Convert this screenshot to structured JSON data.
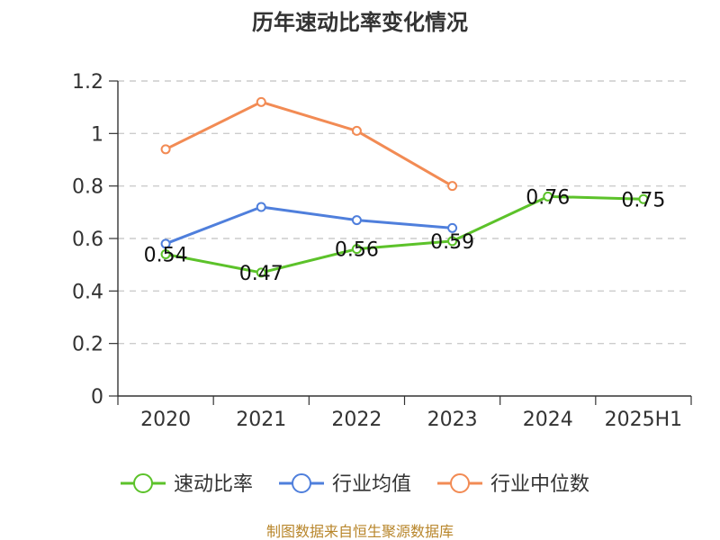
{
  "chart_data": {
    "type": "line",
    "title": "历年速动比率变化情况",
    "categories": [
      "2020",
      "2021",
      "2022",
      "2023",
      "2024",
      "2025H1"
    ],
    "y_ticks": [
      "0",
      "0.2",
      "0.4",
      "0.6",
      "0.8",
      "1",
      "1.2"
    ],
    "ylim": [
      0,
      1.2
    ],
    "grid": true,
    "legend_position": "bottom",
    "series": [
      {
        "name": "速动比率",
        "color": "#5cc22a",
        "values": [
          0.54,
          0.47,
          0.56,
          0.59,
          0.76,
          0.75
        ],
        "labels": [
          "0.54",
          "0.47",
          "0.56",
          "0.59",
          "0.76",
          "0.75"
        ]
      },
      {
        "name": "行业均值",
        "color": "#4f7fdc",
        "values": [
          0.58,
          0.72,
          0.67,
          0.64,
          null,
          null
        ]
      },
      {
        "name": "行业中位数",
        "color": "#f28b54",
        "values": [
          0.94,
          1.12,
          1.01,
          0.8,
          null,
          null
        ]
      }
    ]
  },
  "footer": {
    "text": "制图数据来自恒生聚源数据库"
  }
}
